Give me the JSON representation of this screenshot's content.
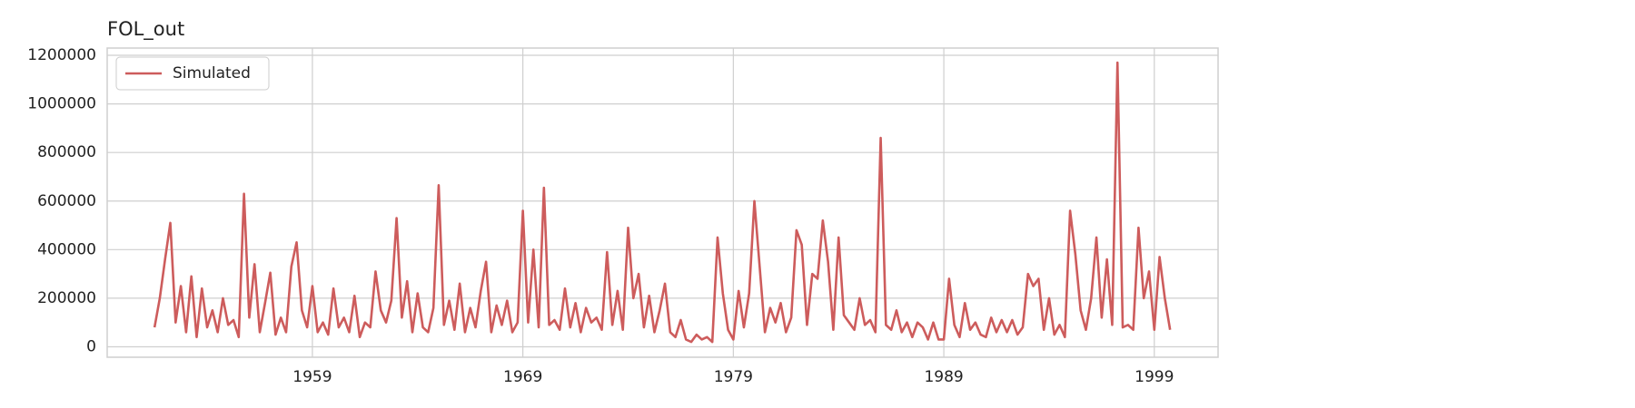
{
  "chart_data": {
    "type": "line",
    "title": "FOL_out",
    "x": [
      1951.5,
      1951.75,
      1952,
      1952.25,
      1952.5,
      1952.75,
      1953,
      1953.25,
      1953.5,
      1953.75,
      1954,
      1954.25,
      1954.5,
      1954.75,
      1955,
      1955.25,
      1955.5,
      1955.75,
      1956,
      1956.25,
      1956.5,
      1956.75,
      1957,
      1957.25,
      1957.5,
      1957.75,
      1958,
      1958.25,
      1958.5,
      1958.75,
      1959,
      1959.25,
      1959.5,
      1959.75,
      1960,
      1960.25,
      1960.5,
      1960.75,
      1961,
      1961.25,
      1961.5,
      1961.75,
      1962,
      1962.25,
      1962.5,
      1962.75,
      1963,
      1963.25,
      1963.5,
      1963.75,
      1964,
      1964.25,
      1964.5,
      1964.75,
      1965,
      1965.25,
      1965.5,
      1965.75,
      1966,
      1966.25,
      1966.5,
      1966.75,
      1967,
      1967.25,
      1967.5,
      1967.75,
      1968,
      1968.25,
      1968.5,
      1968.75,
      1969,
      1969.25,
      1969.5,
      1969.75,
      1970,
      1970.25,
      1970.5,
      1970.75,
      1971,
      1971.25,
      1971.5,
      1971.75,
      1972,
      1972.25,
      1972.5,
      1972.75,
      1973,
      1973.25,
      1973.5,
      1973.75,
      1974,
      1974.25,
      1974.5,
      1974.75,
      1975,
      1975.25,
      1975.5,
      1975.75,
      1976,
      1976.25,
      1976.5,
      1976.75,
      1977,
      1977.25,
      1977.5,
      1977.75,
      1978,
      1978.25,
      1978.5,
      1978.75,
      1979,
      1979.25,
      1979.5,
      1979.75,
      1980,
      1980.25,
      1980.5,
      1980.75,
      1981,
      1981.25,
      1981.5,
      1981.75,
      1982,
      1982.25,
      1982.5,
      1982.75,
      1983,
      1983.25,
      1983.5,
      1983.75,
      1984,
      1984.25,
      1984.5,
      1984.75,
      1985,
      1985.25,
      1985.5,
      1985.75,
      1986,
      1986.25,
      1986.5,
      1986.75,
      1987,
      1987.25,
      1987.5,
      1987.75,
      1988,
      1988.25,
      1988.5,
      1988.75,
      1989,
      1989.25,
      1989.5,
      1989.75,
      1990,
      1990.25,
      1990.5,
      1990.75,
      1991,
      1991.25,
      1991.5,
      1991.75,
      1992,
      1992.25,
      1992.5,
      1992.75,
      1993,
      1993.25,
      1993.5,
      1993.75,
      1994,
      1994.25,
      1994.5,
      1994.75,
      1995,
      1995.25,
      1995.5,
      1995.75,
      1996,
      1996.25,
      1996.5,
      1996.75,
      1997,
      1997.25,
      1997.5,
      1997.75,
      1998,
      1998.25,
      1998.5,
      1998.75,
      1999,
      1999.25,
      1999.5,
      1999.75
    ],
    "series": [
      {
        "name": "Simulated",
        "color": "#cd5c5c",
        "values": [
          80000,
          200000,
          360000,
          510000,
          100000,
          250000,
          60000,
          290000,
          40000,
          240000,
          80000,
          150000,
          60000,
          200000,
          90000,
          110000,
          40000,
          630000,
          120000,
          340000,
          60000,
          180000,
          305000,
          50000,
          120000,
          60000,
          330000,
          430000,
          150000,
          80000,
          250000,
          60000,
          100000,
          50000,
          240000,
          80000,
          120000,
          60000,
          210000,
          40000,
          100000,
          80000,
          310000,
          150000,
          100000,
          190000,
          530000,
          120000,
          270000,
          60000,
          220000,
          80000,
          60000,
          160000,
          665000,
          90000,
          190000,
          70000,
          260000,
          60000,
          160000,
          80000,
          230000,
          350000,
          60000,
          170000,
          90000,
          190000,
          60000,
          100000,
          560000,
          100000,
          400000,
          80000,
          655000,
          90000,
          110000,
          70000,
          240000,
          80000,
          180000,
          60000,
          160000,
          100000,
          120000,
          70000,
          390000,
          90000,
          230000,
          70000,
          490000,
          200000,
          300000,
          80000,
          210000,
          60000,
          150000,
          260000,
          60000,
          40000,
          110000,
          30000,
          20000,
          50000,
          30000,
          40000,
          20000,
          450000,
          220000,
          70000,
          30000,
          230000,
          80000,
          220000,
          600000,
          330000,
          60000,
          160000,
          100000,
          180000,
          60000,
          120000,
          480000,
          420000,
          90000,
          300000,
          280000,
          520000,
          350000,
          70000,
          450000,
          130000,
          100000,
          70000,
          200000,
          90000,
          110000,
          60000,
          860000,
          90000,
          70000,
          150000,
          60000,
          100000,
          40000,
          100000,
          80000,
          30000,
          100000,
          30000,
          30000,
          280000,
          90000,
          40000,
          180000,
          70000,
          100000,
          50000,
          40000,
          120000,
          60000,
          110000,
          60000,
          110000,
          50000,
          80000,
          300000,
          250000,
          280000,
          70000,
          200000,
          50000,
          90000,
          40000,
          560000,
          380000,
          150000,
          70000,
          200000,
          450000,
          120000,
          360000,
          90000,
          1170000,
          80000,
          90000,
          70000,
          490000,
          200000,
          310000,
          70000,
          370000,
          200000,
          70000
        ]
      }
    ],
    "xlim": [
      1949.25,
      2002.03
    ],
    "xticks": [
      1959,
      1969,
      1979,
      1989,
      1999
    ],
    "ylim": [
      -43000,
      1230000
    ],
    "yticks": [
      0,
      200000,
      400000,
      600000,
      800000,
      1000000,
      1200000
    ],
    "grid": true,
    "legend": "upper left"
  }
}
